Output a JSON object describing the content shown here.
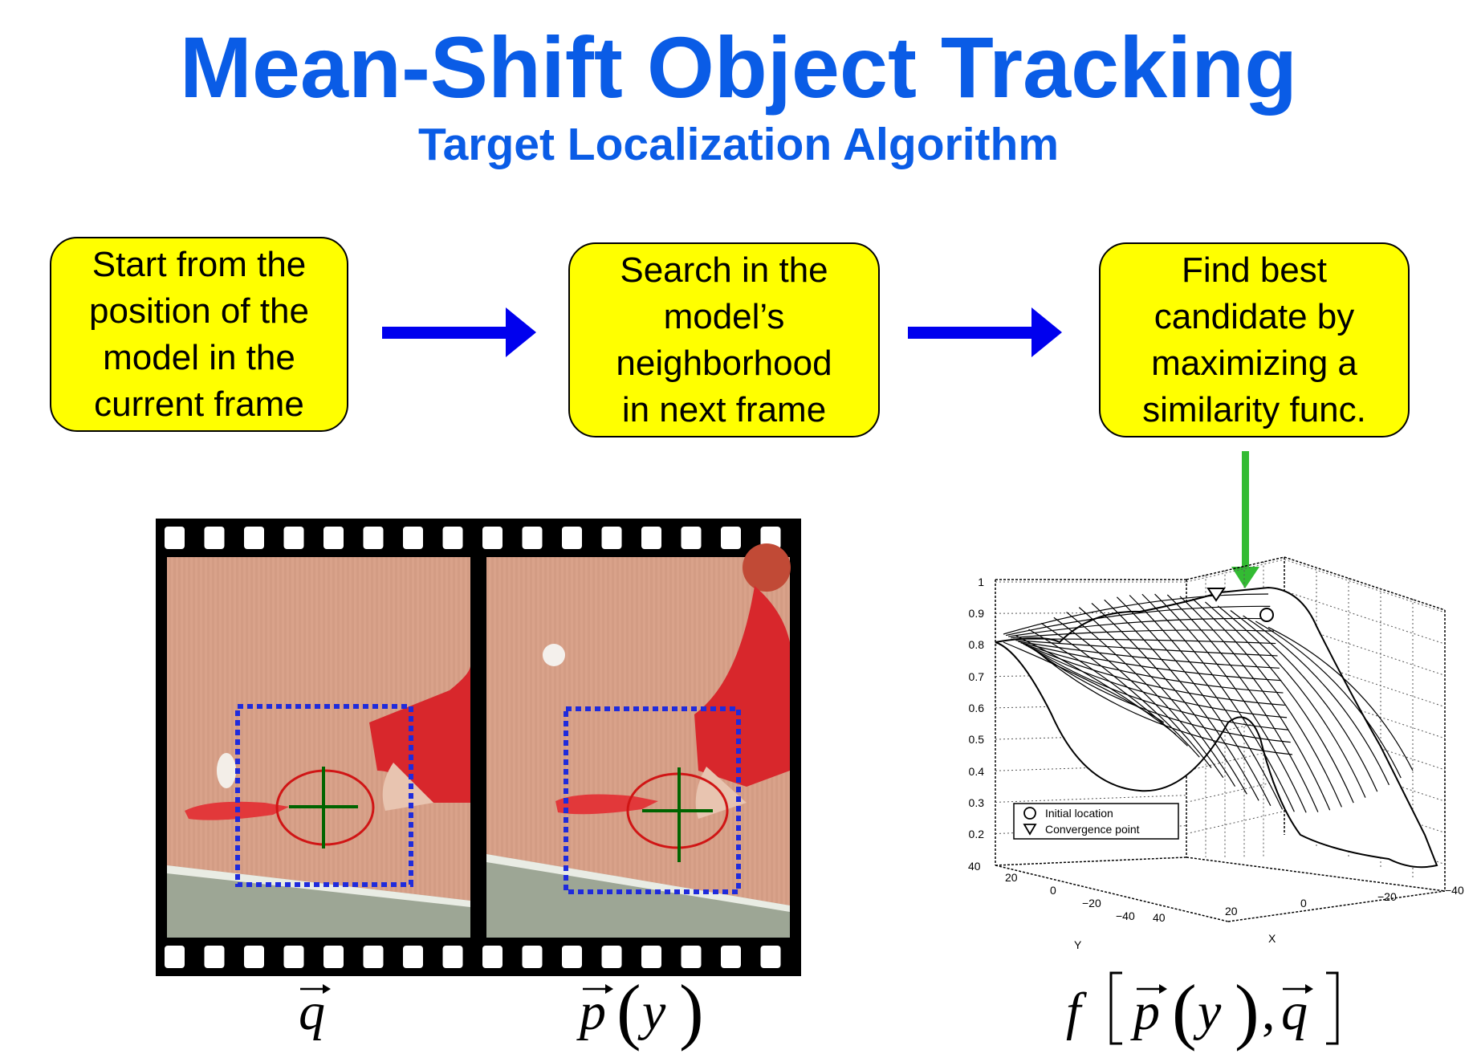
{
  "title": "Mean-Shift Object Tracking",
  "subtitle": "Target Localization Algorithm",
  "steps": [
    "Start from the position of the model in the current frame",
    "Search in the model’s neighborhood in next frame",
    "Find best candidate by maximizing a similarity func."
  ],
  "labels": {
    "model_vector": "q",
    "candidate_vector": "p",
    "candidate_arg": "y",
    "similarity_func": "f"
  },
  "plot": {
    "z_ticks": [
      "1",
      "0.9",
      "0.8",
      "0.7",
      "0.6",
      "0.5",
      "0.4",
      "0.3",
      "0.2"
    ],
    "y_ticks": [
      "40",
      "20",
      "0",
      "−20",
      "−40"
    ],
    "x_ticks": [
      "40",
      "20",
      "0",
      "−20",
      "−40"
    ],
    "y_axis_label": "Y",
    "x_axis_label": "X",
    "legend": [
      "Initial location",
      "Convergence point"
    ]
  },
  "colors": {
    "title": "#0a5ce6",
    "box_fill": "#ffff00",
    "flow_arrow": "#0000ee",
    "highlight_arrow": "#33bb33",
    "search_window": "#1f2bdc"
  }
}
